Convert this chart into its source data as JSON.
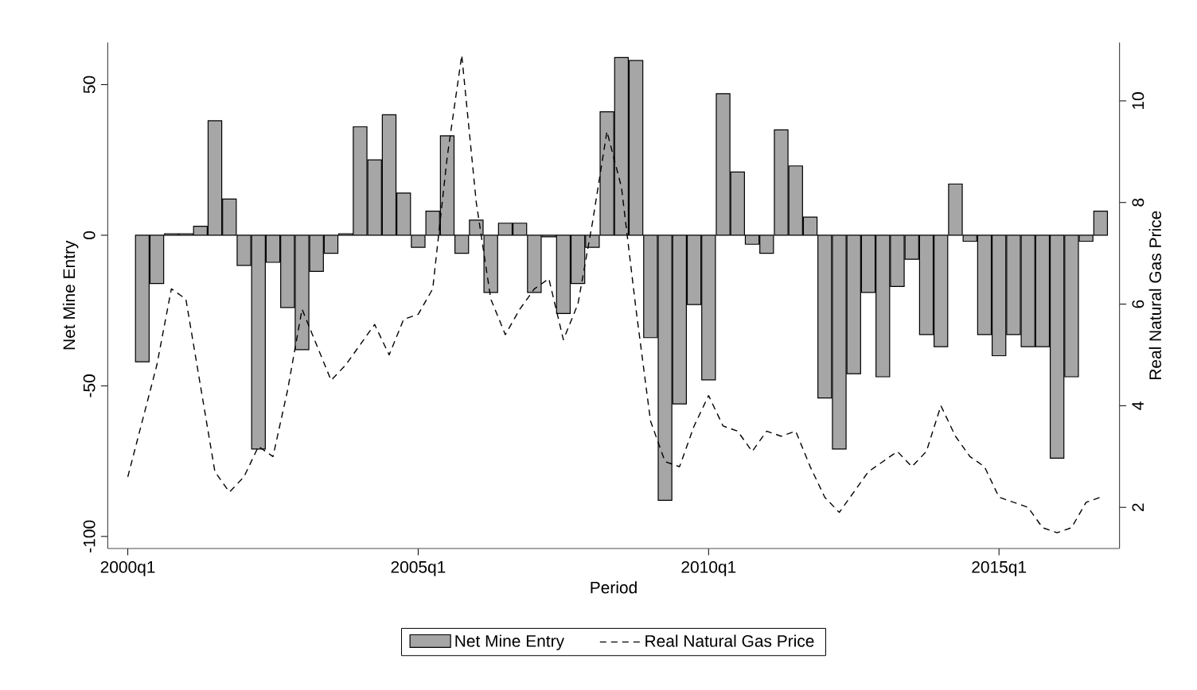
{
  "chart_data": {
    "type": "bar",
    "xlabel": "Period",
    "ylabel": "Net Mine Entry",
    "y2label": "Real Natural Gas Price",
    "categories": [
      "2000q1",
      null,
      null,
      null,
      null,
      null,
      null,
      null,
      null,
      null,
      null,
      null,
      null,
      null,
      null,
      null,
      null,
      null,
      null,
      null,
      "2005q1",
      null,
      null,
      null,
      null,
      null,
      null,
      null,
      null,
      null,
      null,
      null,
      null,
      null,
      null,
      null,
      null,
      null,
      null,
      null,
      "2010q1",
      null,
      null,
      null,
      null,
      null,
      null,
      null,
      null,
      null,
      null,
      null,
      null,
      null,
      null,
      null,
      null,
      null,
      null,
      null,
      "2015q1",
      null,
      null,
      null,
      null,
      null,
      null,
      null
    ],
    "ylim": [
      -104,
      64
    ],
    "yticks": [
      -100,
      -50,
      0,
      50
    ],
    "y2lim": [
      1.19,
      11.15
    ],
    "y2ticks": [
      2,
      4,
      6,
      8,
      10
    ],
    "legend": "bottom",
    "series": [
      {
        "name": "Net Mine Entry",
        "color": "#a6a6a6",
        "values": [
          null,
          -42,
          -16,
          0.5,
          0.5,
          3,
          38,
          12,
          -10,
          -71,
          -9,
          -24,
          -38,
          -12,
          -6,
          0.5,
          36,
          25,
          40,
          14,
          -4,
          8,
          33,
          -6,
          5,
          -19,
          4,
          4,
          -19,
          -0.5,
          -26,
          -16,
          -4,
          41,
          59,
          58,
          -34,
          -88,
          -56,
          -23,
          -48,
          47,
          21,
          -3,
          -6,
          35,
          23,
          6,
          -54,
          -71,
          -46,
          -19,
          -47,
          -17,
          -8,
          -33,
          -37,
          17,
          -2,
          -33,
          -40,
          -33,
          -37,
          -37,
          -74,
          -47,
          -2,
          8
        ]
      },
      {
        "name": "Real Natural Gas Price",
        "type": "line",
        "axis": "y2",
        "color": "#000000",
        "line_style": "dashed",
        "values": [
          2.6,
          3.7,
          4.8,
          6.3,
          6.1,
          4.4,
          2.7,
          2.3,
          2.6,
          3.2,
          3.0,
          4.3,
          5.9,
          5.2,
          4.5,
          4.8,
          5.2,
          5.6,
          5.0,
          5.7,
          5.8,
          6.3,
          8.9,
          10.9,
          8.0,
          6.1,
          5.4,
          5.9,
          6.3,
          6.5,
          5.3,
          6.0,
          7.6,
          9.4,
          8.3,
          5.9,
          3.7,
          2.9,
          2.8,
          3.6,
          4.2,
          3.6,
          3.5,
          3.1,
          3.5,
          3.4,
          3.5,
          2.8,
          2.2,
          1.9,
          2.3,
          2.7,
          2.9,
          3.1,
          2.8,
          3.1,
          4.0,
          3.4,
          3.0,
          2.8,
          2.2,
          2.1,
          2.0,
          1.6,
          1.5,
          1.6,
          2.1,
          2.2
        ]
      }
    ]
  }
}
